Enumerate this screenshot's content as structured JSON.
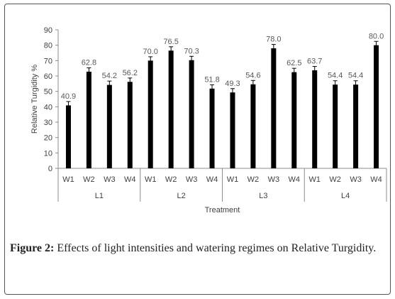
{
  "chart_data": {
    "type": "bar",
    "ylabel": "Relative Turgidity %",
    "xlabel": "Treatment",
    "ylim": [
      0,
      90
    ],
    "yticks": [
      0,
      10,
      20,
      30,
      40,
      50,
      60,
      70,
      80,
      90
    ],
    "groups": [
      {
        "label": "L1",
        "bars": [
          {
            "label": "W1",
            "value": 40.9,
            "value_label": "40.9"
          },
          {
            "label": "W2",
            "value": 62.8,
            "value_label": "62.8"
          },
          {
            "label": "W3",
            "value": 54.2,
            "value_label": "54.2"
          },
          {
            "label": "W4",
            "value": 56.2,
            "value_label": "56.2"
          }
        ]
      },
      {
        "label": "L2",
        "bars": [
          {
            "label": "W1",
            "value": 70.0,
            "value_label": "70.0"
          },
          {
            "label": "W2",
            "value": 76.5,
            "value_label": "76.5"
          },
          {
            "label": "W3",
            "value": 70.3,
            "value_label": "70.3"
          },
          {
            "label": "W4",
            "value": 51.8,
            "value_label": "51.8"
          }
        ]
      },
      {
        "label": "L3",
        "bars": [
          {
            "label": "W1",
            "value": 49.3,
            "value_label": "49.3"
          },
          {
            "label": "W2",
            "value": 54.6,
            "value_label": "54.6"
          },
          {
            "label": "W3",
            "value": 78.0,
            "value_label": "78.0"
          },
          {
            "label": "W4",
            "value": 62.5,
            "value_label": "62.5"
          }
        ]
      },
      {
        "label": "L4",
        "bars": [
          {
            "label": "W1",
            "value": 63.7,
            "value_label": "63.7"
          },
          {
            "label": "W2",
            "value": 54.4,
            "value_label": "54.4"
          },
          {
            "label": "W3",
            "value": 54.4,
            "value_label": "54.4"
          },
          {
            "label": "W4",
            "value": 80.0,
            "value_label": "80.0"
          }
        ]
      }
    ],
    "error_bar": 2.5,
    "grid": false,
    "legend": "none",
    "bar_color": "#000000",
    "label_color": "#595959"
  },
  "caption": {
    "prefix": "Figure 2:",
    "text": " Effects of light intensities and watering regimes on Relative Turgidity."
  }
}
